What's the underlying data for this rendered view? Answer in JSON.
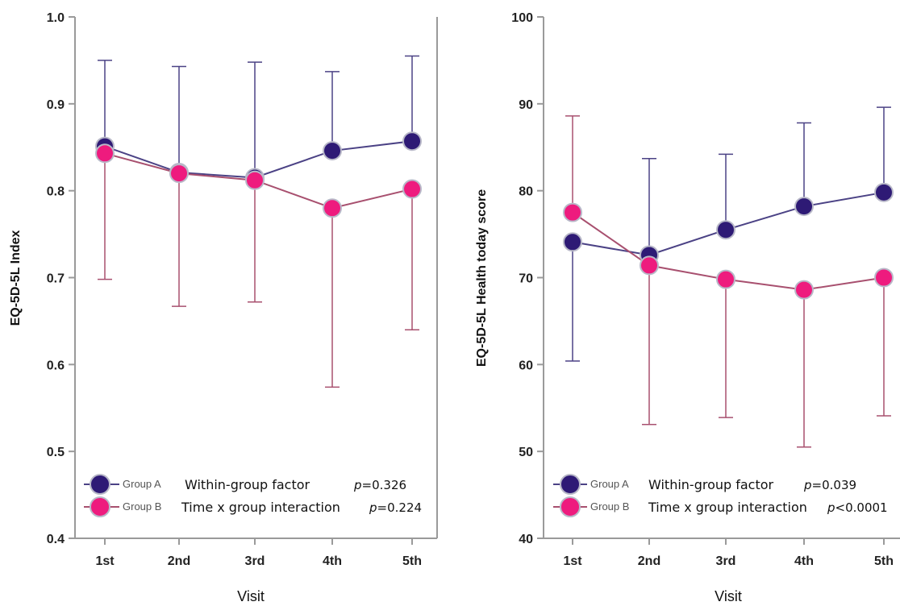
{
  "chart_data": [
    {
      "type": "line",
      "ylabel": "EQ-5D-5L Index",
      "xlabel": "Visit",
      "categories": [
        "1st",
        "2nd",
        "3rd",
        "4th",
        "5th"
      ],
      "ylim": [
        0.4,
        1.0
      ],
      "yticks": [
        "0.4",
        "0.5",
        "0.6",
        "0.7",
        "0.8",
        "0.9",
        "1.0"
      ],
      "series": [
        {
          "name": "Group A",
          "color": "#2e1a75",
          "values": [
            0.851,
            0.821,
            0.815,
            0.846,
            0.857
          ],
          "upper": [
            0.95,
            0.943,
            0.948,
            0.937,
            0.955
          ],
          "error_direction": "up"
        },
        {
          "name": "Group B",
          "color": "#ee1b7e",
          "values": [
            0.843,
            0.82,
            0.812,
            0.78,
            0.802
          ],
          "lower": [
            0.698,
            0.667,
            0.672,
            0.574,
            0.64
          ],
          "error_direction": "down"
        }
      ],
      "legend": [
        {
          "label": "Group A",
          "text": "Within-group factor",
          "p": "p",
          "pval": "=0.326"
        },
        {
          "label": "Group B",
          "text": "Time x group interaction",
          "p": "p",
          "pval": "=0.224"
        }
      ]
    },
    {
      "type": "line",
      "ylabel": "EQ-5D-5L  Health today score",
      "xlabel": "Visit",
      "categories": [
        "1st",
        "2nd",
        "3rd",
        "4th",
        "5th"
      ],
      "ylim": [
        40,
        100
      ],
      "yticks": [
        "40",
        "50",
        "60",
        "70",
        "80",
        "90",
        "100"
      ],
      "series": [
        {
          "name": "Group A",
          "color": "#2e1a75",
          "values": [
            74.1,
            72.6,
            75.5,
            78.2,
            79.8
          ],
          "lower": [
            60.4,
            null,
            null,
            null,
            null
          ],
          "upper": [
            null,
            83.7,
            84.2,
            87.8,
            89.6
          ]
        },
        {
          "name": "Group B",
          "color": "#ee1b7e",
          "values": [
            77.5,
            71.4,
            69.8,
            68.6,
            70.0
          ],
          "lower": [
            null,
            53.1,
            53.9,
            50.5,
            54.1
          ],
          "upper": [
            88.6,
            null,
            null,
            null,
            null
          ]
        }
      ],
      "legend": [
        {
          "label": "Group A",
          "text": "Within-group factor",
          "p": "p",
          "pval": "=0.039"
        },
        {
          "label": "Group B",
          "text": "Time x group interaction",
          "p": "p",
          "pval": "<0.0001"
        }
      ]
    }
  ]
}
